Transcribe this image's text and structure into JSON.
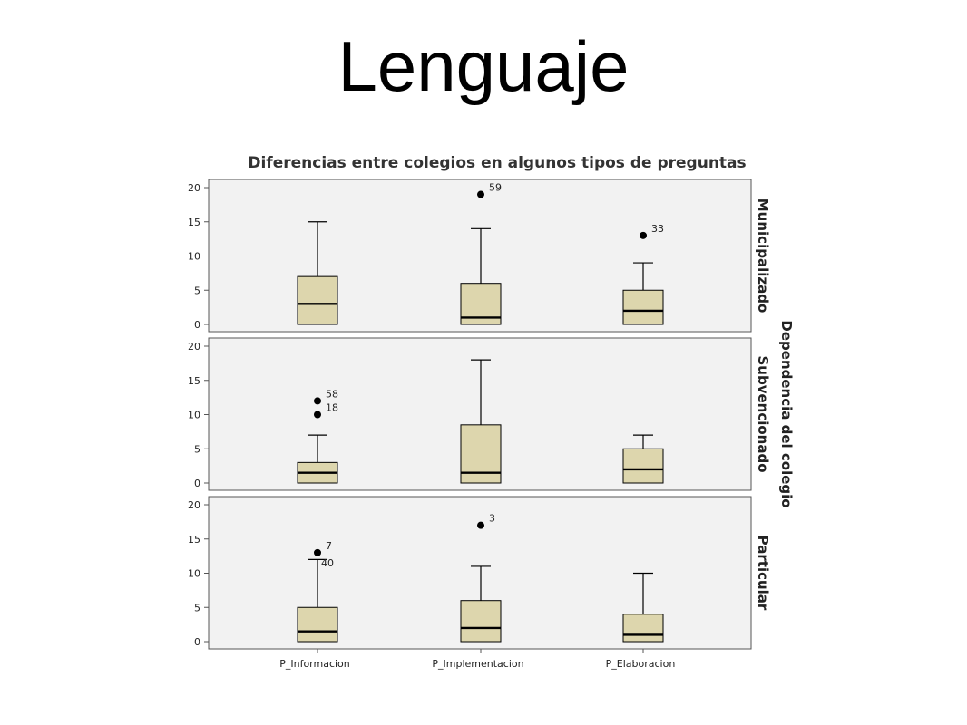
{
  "slide_title": "Lenguaje",
  "chart_data": {
    "type": "boxplot",
    "title": "Diferencias entre colegios en algunos tipos de preguntas",
    "categories": [
      "P_Informacion",
      "P_Implementacion",
      "P_Elaboracion"
    ],
    "facet_label": "Dependencia del colegio",
    "ylim": [
      0,
      20
    ],
    "yticks": [
      0,
      5,
      10,
      15,
      20
    ],
    "colors": {
      "box_fill": "#ddd6ad",
      "panel_bg": "#f2f2f2",
      "outline": "#000000"
    },
    "panels": [
      {
        "name": "Municipalizado",
        "boxes": [
          {
            "category": "P_Informacion",
            "min": 0,
            "q1": 0,
            "median": 3,
            "q3": 7,
            "max": 15,
            "outliers": []
          },
          {
            "category": "P_Implementacion",
            "min": 0,
            "q1": 0,
            "median": 1,
            "q3": 6,
            "max": 14,
            "outliers": [
              {
                "value": 19,
                "label": "59"
              }
            ]
          },
          {
            "category": "P_Elaboracion",
            "min": 0,
            "q1": 0,
            "median": 2,
            "q3": 5,
            "max": 9,
            "outliers": [
              {
                "value": 13,
                "label": "33"
              }
            ]
          }
        ]
      },
      {
        "name": "Subvencionado",
        "boxes": [
          {
            "category": "P_Informacion",
            "min": 0,
            "q1": 0,
            "median": 1.5,
            "q3": 3,
            "max": 7,
            "outliers": [
              {
                "value": 12,
                "label": "58"
              },
              {
                "value": 10,
                "label": "18"
              }
            ]
          },
          {
            "category": "P_Implementacion",
            "min": 0,
            "q1": 0,
            "median": 1.5,
            "q3": 8.5,
            "max": 18,
            "outliers": []
          },
          {
            "category": "P_Elaboracion",
            "min": 0,
            "q1": 0,
            "median": 2,
            "q3": 5,
            "max": 7,
            "outliers": []
          }
        ]
      },
      {
        "name": "Particular",
        "boxes": [
          {
            "category": "P_Informacion",
            "min": 0,
            "q1": 0,
            "median": 1.5,
            "q3": 5,
            "max": 12,
            "outliers": [
              {
                "value": 13,
                "label": "7"
              },
              {
                "value": 13,
                "label": "40"
              }
            ]
          },
          {
            "category": "P_Implementacion",
            "min": 0,
            "q1": 0,
            "median": 2,
            "q3": 6,
            "max": 11,
            "outliers": [
              {
                "value": 17,
                "label": "3"
              }
            ]
          },
          {
            "category": "P_Elaboracion",
            "min": 0,
            "q1": 0,
            "median": 1,
            "q3": 4,
            "max": 10,
            "outliers": []
          }
        ]
      }
    ]
  }
}
